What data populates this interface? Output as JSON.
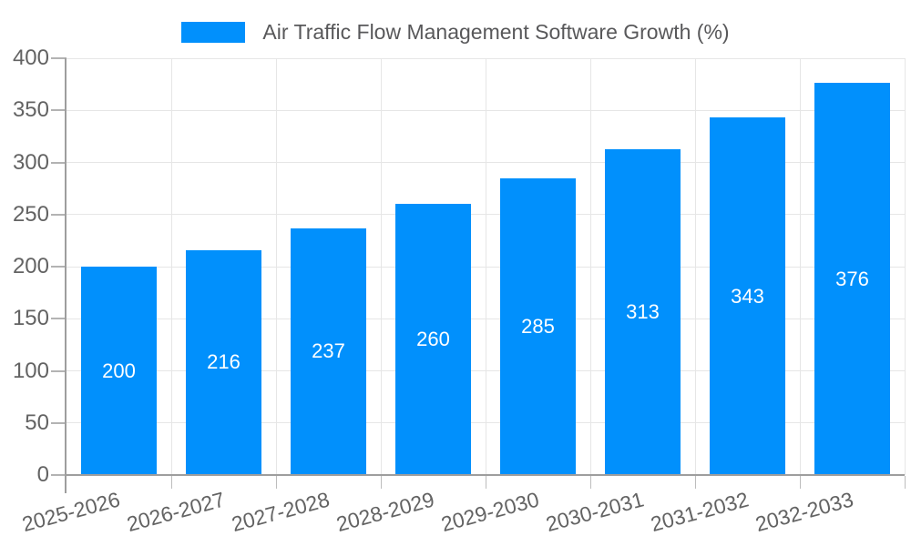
{
  "chart_data": {
    "type": "bar",
    "title": "Air Traffic Flow Management Software Growth (%)",
    "legend": {
      "label": "Air Traffic Flow Management Software Growth (%)",
      "position": "top"
    },
    "categories": [
      "2025-2026",
      "2026-2027",
      "2027-2028",
      "2028-2029",
      "2029-2030",
      "2030-2031",
      "2031-2032",
      "2032-2033"
    ],
    "values": [
      200,
      216,
      237,
      260,
      285,
      313,
      343,
      376
    ],
    "xlabel": "",
    "ylabel": "",
    "ylim": [
      0,
      400
    ],
    "yticks": [
      0,
      50,
      100,
      150,
      200,
      250,
      300,
      350,
      400
    ],
    "grid": true,
    "x_label_rotation_deg": -15,
    "value_labels_position": "inside-center"
  },
  "colors": {
    "bar": "#0190fc",
    "grid": "#e6e6e6",
    "axis": "#9e9e9e",
    "tick_text": "#636363",
    "legend_text": "#58585a",
    "value_label": "#ffffff",
    "background": "#ffffff"
  }
}
